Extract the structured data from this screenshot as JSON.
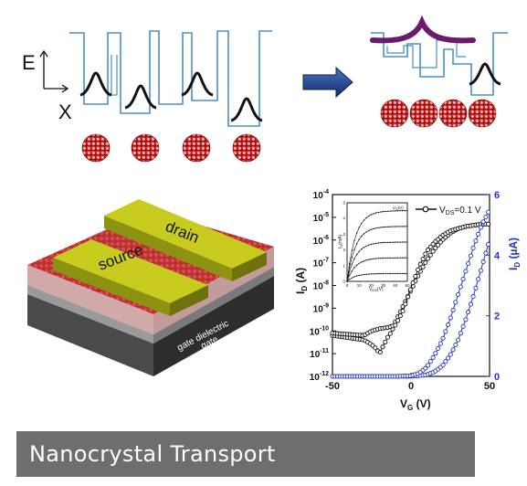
{
  "energy_diagram": {
    "axis_e_label": "E",
    "axis_x_label": "X",
    "arrow_color": "#1f3f7a",
    "well_line_color": "#4a90c8",
    "coupled_state_color": "#6a1b6e"
  },
  "device": {
    "source_label": "source",
    "drain_label": "drain",
    "dielectric_label": "gate dielectric",
    "gate_label": "gate",
    "electrode_color": "#c8cc1e",
    "nanocrystal_color": "#c21e1e"
  },
  "chart_data": {
    "type": "line",
    "xlabel_main": "V",
    "xlabel_sub": "G",
    "xlabel_unit": "(V)",
    "ylabel_left_main": "I",
    "ylabel_left_sub": "D",
    "ylabel_left_unit": "(A)",
    "ylabel_right_main": "I",
    "ylabel_right_sub": "D",
    "ylabel_right_unit": "(µA)",
    "xlim": [
      -50,
      50
    ],
    "ylim_left_log": [
      -12,
      -4
    ],
    "ylim_right": [
      0,
      6
    ],
    "x_ticks": [
      "-50",
      "0",
      "50"
    ],
    "y_left_ticks": [
      {
        "base": "10",
        "exp": "-4"
      },
      {
        "base": "10",
        "exp": "-5"
      },
      {
        "base": "10",
        "exp": "-6"
      },
      {
        "base": "10",
        "exp": "-7"
      },
      {
        "base": "10",
        "exp": "-8"
      },
      {
        "base": "10",
        "exp": "-9"
      },
      {
        "base": "10",
        "exp": "-10"
      },
      {
        "base": "10",
        "exp": "-11"
      },
      {
        "base": "10",
        "exp": "-12"
      }
    ],
    "y_right_ticks": [
      "0",
      "2",
      "4",
      "6"
    ],
    "legend": {
      "prefix": "V",
      "sub": "DS",
      "suffix": "=0.1 V",
      "placement": "top-right"
    },
    "left_color": "#111111",
    "right_color": "#2233cc",
    "series": [
      {
        "axis": "left-log",
        "sweep": "forward",
        "x": [
          -50,
          -40,
          -30,
          -25,
          -22,
          -20,
          -18,
          -15,
          -12,
          -10,
          -5,
          0,
          5,
          10,
          15,
          20,
          25,
          30,
          35,
          40,
          45,
          50
        ],
        "y": [
          -10.2,
          -10.3,
          -10.4,
          -10.6,
          -10.8,
          -11.0,
          -10.7,
          -10.3,
          -10.0,
          -9.6,
          -8.9,
          -8.2,
          -7.5,
          -6.9,
          -6.4,
          -6.0,
          -5.7,
          -5.5,
          -5.4,
          -5.35,
          -5.3,
          -5.3
        ]
      },
      {
        "axis": "left-log",
        "sweep": "reverse",
        "x": [
          -50,
          -40,
          -30,
          -25,
          -20,
          -15,
          -10,
          -5,
          0,
          5,
          10,
          15,
          20,
          25,
          30,
          35,
          40,
          45,
          50
        ],
        "y": [
          -10.1,
          -10.15,
          -10.2,
          -10.0,
          -9.9,
          -9.85,
          -9.75,
          -9.1,
          -8.1,
          -7.2,
          -6.5,
          -6.1,
          -5.8,
          -5.6,
          -5.5,
          -5.4,
          -5.35,
          -5.3,
          -5.3
        ]
      },
      {
        "axis": "right-linear",
        "sweep": "forward",
        "x": [
          -50,
          -40,
          -30,
          -20,
          -10,
          0,
          5,
          10,
          15,
          20,
          25,
          30,
          35,
          40,
          45,
          50
        ],
        "y": [
          0,
          0,
          0,
          0,
          0,
          0,
          0.02,
          0.05,
          0.15,
          0.35,
          0.7,
          1.2,
          1.9,
          2.7,
          3.6,
          4.5
        ]
      },
      {
        "axis": "right-linear",
        "sweep": "reverse",
        "x": [
          -50,
          -40,
          -30,
          -20,
          -10,
          0,
          5,
          10,
          15,
          20,
          25,
          30,
          35,
          40,
          45,
          50
        ],
        "y": [
          0,
          0,
          0,
          0,
          0,
          0.02,
          0.1,
          0.3,
          0.7,
          1.2,
          1.9,
          2.7,
          3.5,
          4.3,
          5.0,
          5.5
        ]
      }
    ],
    "inset": {
      "ylabel_main": "I",
      "ylabel_sub": "D",
      "ylabel_unit": "(mA)",
      "xlabel_main": "V",
      "xlabel_sub": "DS",
      "xlabel_unit": "(V)",
      "legend_main": "V",
      "legend_sub": "G",
      "legend_unit": "(V)",
      "x_ticks": [
        "0",
        "10",
        "20",
        "30",
        "40",
        "50"
      ],
      "y_ticks": [
        "0",
        "1",
        "2",
        "3",
        "4",
        "5"
      ],
      "curves_sat": [
        0.5,
        1.5,
        2.5,
        3.5,
        4.5
      ]
    }
  },
  "caption": {
    "text": "Nanocrystal Transport",
    "bar_color": "#6e6e6e"
  }
}
